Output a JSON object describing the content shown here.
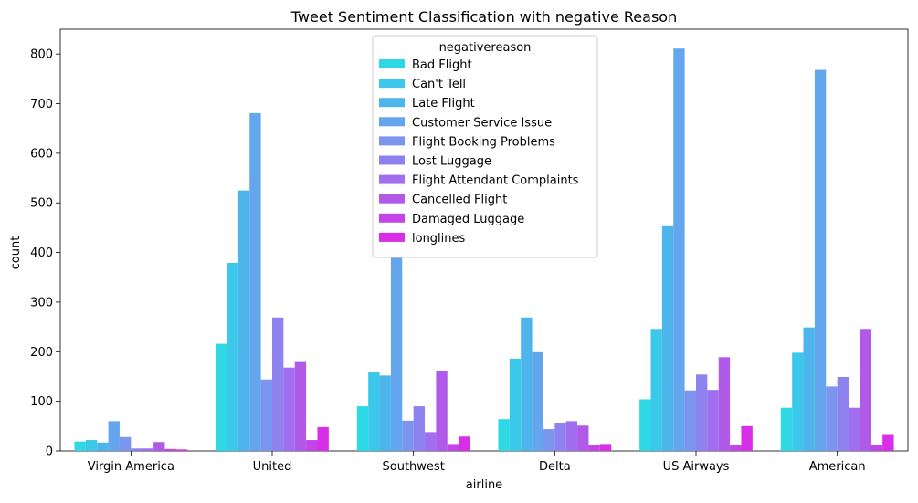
{
  "chart_data": {
    "type": "bar",
    "title": "Tweet Sentiment Classification with negative Reason",
    "xlabel": "airline",
    "ylabel": "count",
    "ylim": [
      0,
      850
    ],
    "yticks": [
      0,
      100,
      200,
      300,
      400,
      500,
      600,
      700,
      800
    ],
    "grid": false,
    "legend": {
      "title": "negativereason",
      "placement": "top-center"
    },
    "categories": [
      "Virgin America",
      "United",
      "Southwest",
      "Delta",
      "US Airways",
      "American"
    ],
    "series": [
      {
        "name": "Bad Flight",
        "color": "#2ed8e4",
        "values": [
          19,
          216,
          90,
          64,
          104,
          87
        ]
      },
      {
        "name": "Can't Tell",
        "color": "#3cc8ea",
        "values": [
          22,
          379,
          159,
          186,
          246,
          198
        ]
      },
      {
        "name": "Late Flight",
        "color": "#4db5ec",
        "values": [
          17,
          525,
          152,
          269,
          453,
          249
        ]
      },
      {
        "name": "Customer Service Issue",
        "color": "#64a6ee",
        "values": [
          60,
          681,
          391,
          199,
          811,
          768
        ]
      },
      {
        "name": "Flight Booking Problems",
        "color": "#7c95ef",
        "values": [
          28,
          144,
          61,
          44,
          122,
          130
        ]
      },
      {
        "name": "Lost Luggage",
        "color": "#8d82ee",
        "values": [
          5,
          269,
          90,
          57,
          154,
          149
        ]
      },
      {
        "name": "Flight Attendant Complaints",
        "color": "#a06eef",
        "values": [
          5,
          168,
          38,
          60,
          123,
          87
        ]
      },
      {
        "name": "Cancelled Flight",
        "color": "#b05be8",
        "values": [
          18,
          181,
          162,
          51,
          189,
          246
        ]
      },
      {
        "name": "Damaged Luggage",
        "color": "#c344e8",
        "values": [
          4,
          22,
          14,
          11,
          11,
          12
        ]
      },
      {
        "name": "longlines",
        "color": "#d82ee8",
        "values": [
          3,
          48,
          29,
          14,
          50,
          34
        ]
      }
    ]
  }
}
